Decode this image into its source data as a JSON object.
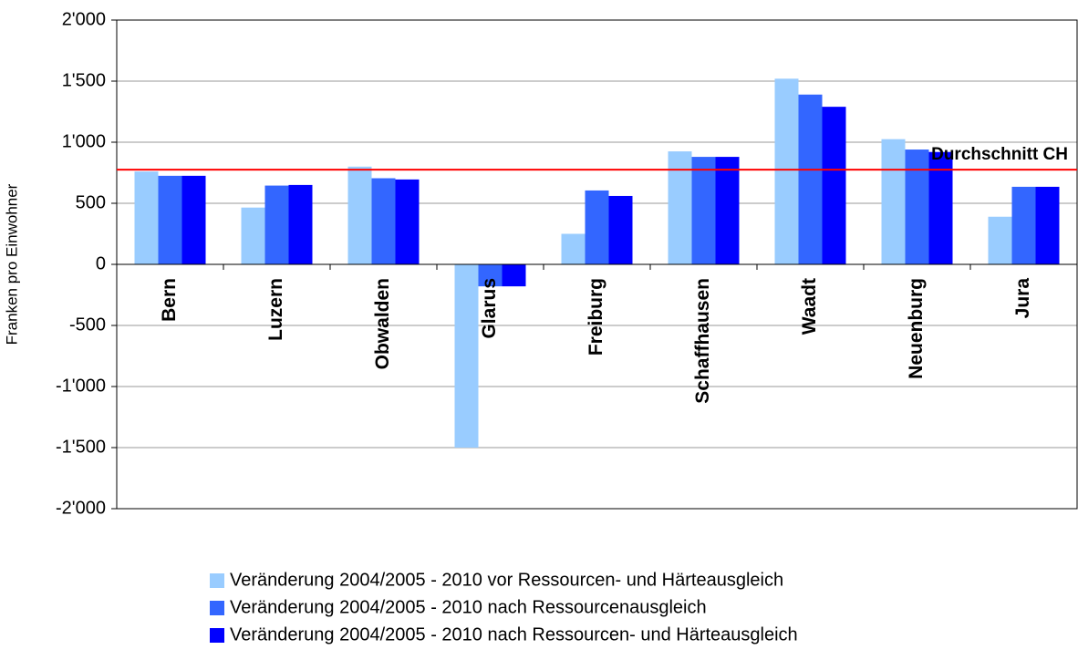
{
  "chart_data": {
    "type": "bar",
    "ylabel": "Franken pro Einwohner",
    "categories": [
      "Bern",
      "Luzern",
      "Obwalden",
      "Glarus",
      "Freiburg",
      "Schaffhausen",
      "Waadt",
      "Neuenburg",
      "Jura"
    ],
    "series": [
      {
        "name": "Veränderung 2004/2005 - 2010 vor Ressourcen- und Härteausgleich",
        "color": "#99ccff",
        "values": [
          760,
          465,
          800,
          -1500,
          250,
          925,
          1520,
          1025,
          390
        ]
      },
      {
        "name": "Veränderung 2004/2005 - 2010 nach Ressourcenausgleich",
        "color": "#3366ff",
        "values": [
          725,
          645,
          705,
          -180,
          605,
          880,
          1390,
          940,
          635
        ]
      },
      {
        "name": "Veränderung 2004/2005 - 2010 nach Ressourcen- und Härteausgleich",
        "color": "#0000ff",
        "values": [
          725,
          650,
          695,
          -180,
          560,
          880,
          1290,
          920,
          635
        ]
      }
    ],
    "reference_line": {
      "value": 775,
      "label": "Durchschnitt CH",
      "color": "#ff0000"
    },
    "ylim": [
      -2000,
      2000
    ],
    "yticks": [
      {
        "value": -2000,
        "label": "-2'000"
      },
      {
        "value": -1500,
        "label": "-1'500"
      },
      {
        "value": -1000,
        "label": "-1'000"
      },
      -500,
      0,
      500,
      {
        "value": 1000,
        "label": "1'000"
      },
      {
        "value": 1500,
        "label": "1'500"
      },
      {
        "value": 2000,
        "label": "2'000"
      }
    ],
    "grid": true
  }
}
